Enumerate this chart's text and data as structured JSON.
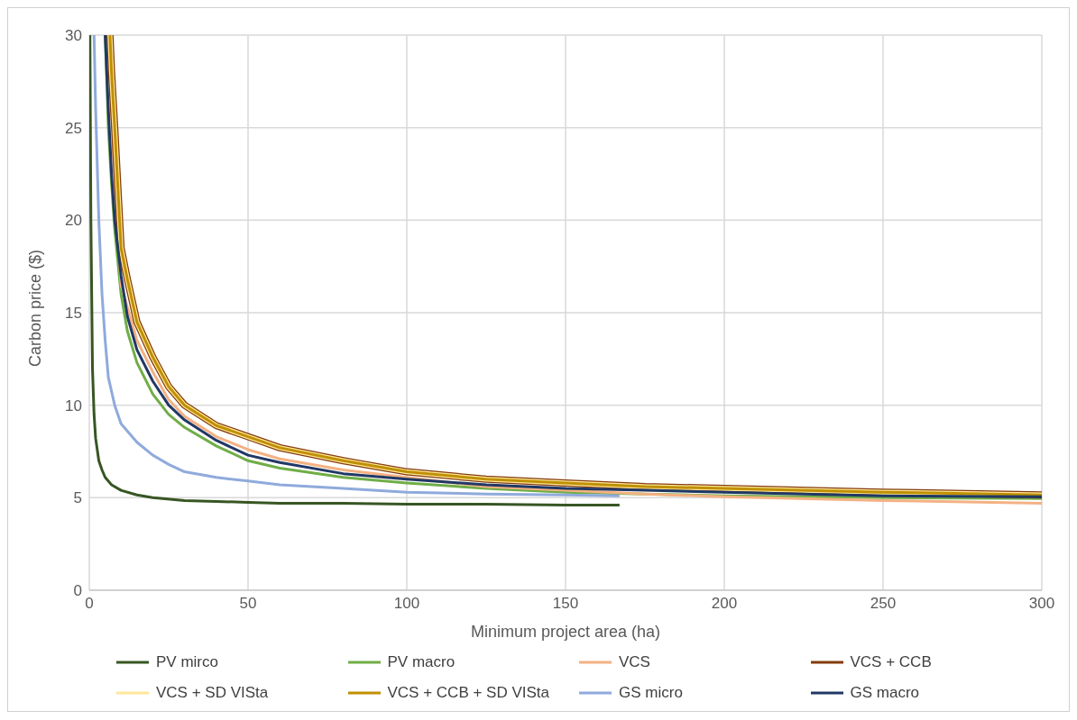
{
  "chart_data": {
    "type": "line",
    "xlabel": "Minimum project area (ha)",
    "ylabel": "Carbon price ($)",
    "xlim": [
      0,
      300
    ],
    "xticks": [
      0,
      50,
      100,
      150,
      200,
      250,
      300
    ],
    "ylim": [
      0,
      30
    ],
    "yticks": [
      0,
      5,
      10,
      15,
      20,
      25,
      30
    ],
    "grid": true,
    "legend": "bottom",
    "marker": "none",
    "line_style": "solid",
    "series": [
      {
        "name": "PV mirco",
        "color": "#375623",
        "x": [
          0.2,
          0.5,
          1,
          1.5,
          2,
          3,
          4,
          5,
          7,
          10,
          15,
          20,
          30,
          40,
          50,
          60,
          80,
          100,
          125,
          150,
          167
        ],
        "values": [
          30,
          20,
          12,
          9.5,
          8.2,
          7,
          6.5,
          6.1,
          5.7,
          5.4,
          5.15,
          5,
          4.85,
          4.8,
          4.75,
          4.7,
          4.7,
          4.65,
          4.65,
          4.6,
          4.6
        ]
      },
      {
        "name": "PV macro",
        "color": "#70ad47",
        "x": [
          5,
          6,
          7,
          8,
          10,
          12,
          15,
          20,
          25,
          30,
          40,
          50,
          60,
          80,
          100,
          125,
          150,
          175,
          200,
          250,
          300
        ],
        "values": [
          30,
          25,
          22,
          19.5,
          16,
          14,
          12.3,
          10.6,
          9.5,
          8.8,
          7.8,
          7,
          6.6,
          6.1,
          5.8,
          5.5,
          5.3,
          5.2,
          5.1,
          5,
          4.95
        ]
      },
      {
        "name": "VCS",
        "color": "#f4b183",
        "x": [
          6,
          7,
          8,
          10,
          15,
          20,
          25,
          30,
          40,
          50,
          60,
          80,
          100,
          125,
          150,
          175,
          200,
          250,
          300
        ],
        "values": [
          30,
          26,
          22,
          16.5,
          13.5,
          11.8,
          10.3,
          9.4,
          8.3,
          7.6,
          7.1,
          6.5,
          6.1,
          5.6,
          5.4,
          5.2,
          5.05,
          4.85,
          4.7
        ]
      },
      {
        "name": "VCS + CCB",
        "color": "#843c0c",
        "x": [
          6.5,
          7,
          8,
          10,
          12,
          15,
          20,
          25,
          30,
          40,
          50,
          60,
          80,
          100,
          125,
          150,
          175,
          200,
          250,
          300
        ],
        "values": [
          30,
          28,
          25,
          18.5,
          16.8,
          14.5,
          12.6,
          11,
          10,
          8.9,
          8.3,
          7.7,
          7,
          6.4,
          6,
          5.8,
          5.6,
          5.5,
          5.3,
          5.15
        ]
      },
      {
        "name": "VCS + SD VISta",
        "color": "#ffe699",
        "x": [
          6.5,
          7,
          8,
          10,
          12,
          15,
          20,
          25,
          30,
          40,
          50,
          60,
          80,
          100,
          125,
          150,
          175,
          200,
          250,
          300
        ],
        "values": [
          30,
          28,
          25,
          18.5,
          16.8,
          14.5,
          12.6,
          11,
          10,
          8.9,
          8.3,
          7.7,
          7,
          6.4,
          6,
          5.8,
          5.6,
          5.5,
          5.3,
          5.15
        ]
      },
      {
        "name": "VCS + CCB + SD VISta",
        "color": "#bf9000",
        "x": [
          6.5,
          7,
          8,
          10,
          12,
          15,
          20,
          25,
          30,
          40,
          50,
          60,
          80,
          100,
          125,
          150,
          175,
          200,
          250,
          300
        ],
        "values": [
          30,
          28,
          25,
          18.5,
          16.8,
          14.5,
          12.6,
          11,
          10,
          8.9,
          8.3,
          7.7,
          7,
          6.4,
          6,
          5.8,
          5.6,
          5.5,
          5.3,
          5.15
        ]
      },
      {
        "name": "GS micro",
        "color": "#8faadc",
        "x": [
          1.5,
          2,
          3,
          4,
          5,
          6,
          8,
          10,
          15,
          20,
          25,
          30,
          40,
          50,
          60,
          80,
          100,
          125,
          150,
          167
        ],
        "values": [
          30,
          26,
          20,
          16,
          13.5,
          11.5,
          10,
          9,
          8,
          7.3,
          6.8,
          6.4,
          6.1,
          5.9,
          5.7,
          5.5,
          5.3,
          5.2,
          5.15,
          5.1
        ]
      },
      {
        "name": "GS macro",
        "color": "#203864",
        "x": [
          5,
          6,
          7,
          8,
          10,
          12,
          15,
          20,
          25,
          30,
          40,
          50,
          60,
          80,
          100,
          125,
          150,
          175,
          200,
          250,
          300
        ],
        "values": [
          30,
          26,
          22.5,
          20,
          17,
          14.8,
          13,
          11.3,
          10,
          9.2,
          8.1,
          7.3,
          6.9,
          6.3,
          6,
          5.7,
          5.5,
          5.4,
          5.3,
          5.1,
          5.05
        ]
      }
    ]
  }
}
